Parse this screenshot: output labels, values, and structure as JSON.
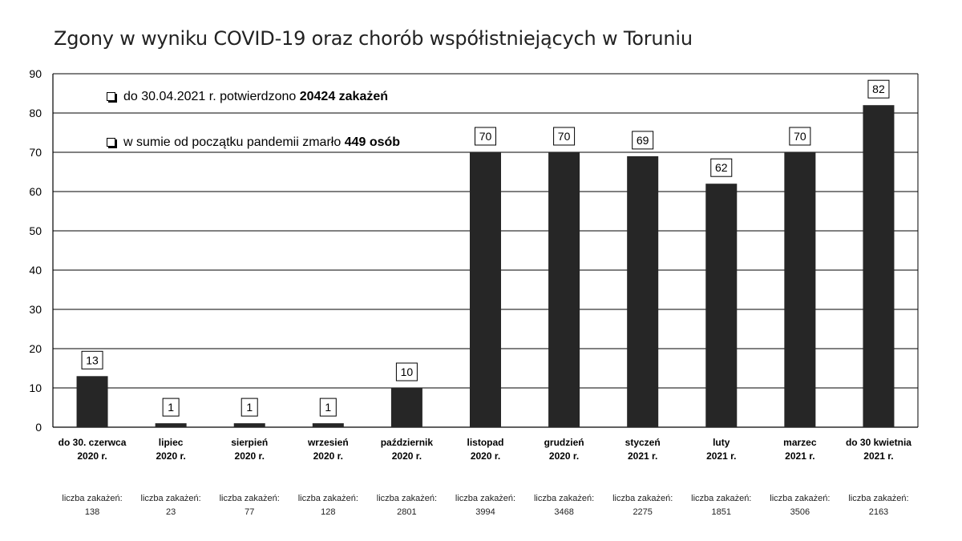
{
  "chart_data": {
    "type": "bar",
    "title": "Zgony w wyniku COVID-19 oraz chorób współistniejących w Toruniu",
    "ylim": [
      0,
      90
    ],
    "yticks": [
      0,
      10,
      20,
      30,
      40,
      50,
      60,
      70,
      80,
      90
    ],
    "grid": true,
    "categories": [
      [
        "do 30. czerwca",
        "2020 r."
      ],
      [
        "lipiec",
        "2020 r."
      ],
      [
        "sierpień",
        "2020 r."
      ],
      [
        "wrzesień",
        "2020 r."
      ],
      [
        "październik",
        "2020 r."
      ],
      [
        "listopad",
        "2020 r."
      ],
      [
        "grudzień",
        "2020 r."
      ],
      [
        "styczeń",
        "2021 r."
      ],
      [
        "luty",
        "2021 r."
      ],
      [
        "marzec",
        "2021 r."
      ],
      [
        "do 30 kwietnia",
        "2021 r."
      ]
    ],
    "values": [
      13,
      1,
      1,
      1,
      10,
      70,
      70,
      69,
      62,
      70,
      82
    ],
    "infections_label": "liczba zakażeń:",
    "infections": [
      138,
      23,
      77,
      128,
      2801,
      3994,
      3468,
      2275,
      1851,
      3506,
      2163
    ],
    "bar_color": "#262626",
    "annotations": [
      {
        "prefix": "do 30.04.2021 r. potwierdzono ",
        "bold": "20424 zakażeń"
      },
      {
        "prefix": "w sumie od początku pandemii zmarło ",
        "bold": "449 osób"
      }
    ]
  }
}
